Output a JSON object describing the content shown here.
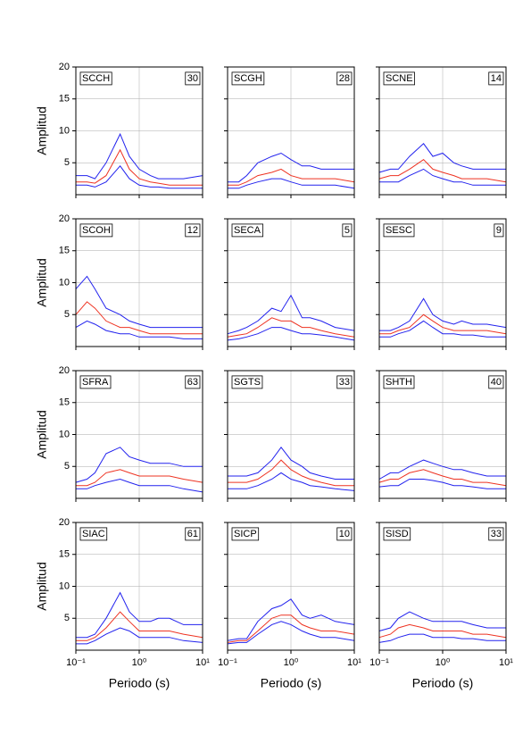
{
  "chart_data": [
    {
      "type": "line",
      "title": "SCCH",
      "annotation": "30",
      "ylabel": "Amplitud",
      "x": [
        0.1,
        0.15,
        0.2,
        0.3,
        0.5,
        0.7,
        1,
        1.5,
        2,
        3,
        5,
        10
      ],
      "xlim": [
        0.1,
        10
      ],
      "xscale": "log",
      "xticks": [
        {
          "value": 0.1,
          "label": "10⁻¹"
        },
        {
          "value": 1,
          "label": "10⁰"
        },
        {
          "value": 10,
          "label": "10¹"
        }
      ],
      "ylim": [
        0,
        20
      ],
      "yticks": [
        5,
        10,
        15,
        20
      ],
      "grid": true,
      "series": [
        {
          "color": "#2222ee",
          "values": [
            3,
            3,
            2.5,
            5,
            9.5,
            6,
            4,
            3,
            2.5,
            2.5,
            2.5,
            3
          ]
        },
        {
          "color": "#2222ee",
          "values": [
            1.5,
            1.5,
            1.2,
            2,
            4.5,
            2.5,
            1.5,
            1.2,
            1.2,
            1,
            1,
            1
          ]
        },
        {
          "color": "#ee3322",
          "values": [
            2,
            2,
            1.8,
            3,
            7,
            4,
            2.5,
            2,
            1.8,
            1.5,
            1.5,
            1.5
          ]
        }
      ]
    },
    {
      "type": "line",
      "title": "SCGH",
      "annotation": "28",
      "x": [
        0.1,
        0.15,
        0.2,
        0.3,
        0.5,
        0.7,
        1,
        1.5,
        2,
        3,
        5,
        10
      ],
      "xlim": [
        0.1,
        10
      ],
      "xscale": "log",
      "xticks": [
        {
          "value": 0.1,
          "label": "10⁻¹"
        },
        {
          "value": 1,
          "label": "10⁰"
        },
        {
          "value": 10,
          "label": "10¹"
        }
      ],
      "ylim": [
        0,
        20
      ],
      "yticks": [
        5,
        10,
        15,
        20
      ],
      "grid": true,
      "series": [
        {
          "color": "#2222ee",
          "values": [
            2,
            2,
            3,
            5,
            6,
            6.5,
            5.5,
            4.5,
            4.5,
            4,
            4,
            4
          ]
        },
        {
          "color": "#2222ee",
          "values": [
            1,
            1,
            1.5,
            2,
            2.5,
            2.5,
            2,
            1.5,
            1.5,
            1.5,
            1.5,
            1
          ]
        },
        {
          "color": "#ee3322",
          "values": [
            1.5,
            1.5,
            2,
            3,
            3.5,
            4,
            3,
            2.5,
            2.5,
            2.5,
            2.5,
            2
          ]
        }
      ]
    },
    {
      "type": "line",
      "title": "SCNE",
      "annotation": "14",
      "x": [
        0.1,
        0.15,
        0.2,
        0.3,
        0.5,
        0.7,
        1,
        1.5,
        2,
        3,
        5,
        10
      ],
      "xlim": [
        0.1,
        10
      ],
      "xscale": "log",
      "xticks": [
        {
          "value": 0.1,
          "label": "10⁻¹"
        },
        {
          "value": 1,
          "label": "10⁰"
        },
        {
          "value": 10,
          "label": "10¹"
        }
      ],
      "ylim": [
        0,
        20
      ],
      "yticks": [
        5,
        10,
        15,
        20
      ],
      "grid": true,
      "series": [
        {
          "color": "#2222ee",
          "values": [
            3.5,
            4,
            4,
            6,
            8,
            6,
            6.5,
            5,
            4.5,
            4,
            4,
            4
          ]
        },
        {
          "color": "#2222ee",
          "values": [
            2,
            2,
            2,
            3,
            4,
            3,
            2.5,
            2,
            2,
            1.5,
            1.5,
            1.5
          ]
        },
        {
          "color": "#ee3322",
          "values": [
            2.5,
            3,
            3,
            4,
            5.5,
            4,
            3.5,
            3,
            2.5,
            2.5,
            2.5,
            2
          ]
        }
      ]
    },
    {
      "type": "line",
      "title": "SCOH",
      "annotation": "12",
      "ylabel": "Amplitud",
      "x": [
        0.1,
        0.15,
        0.2,
        0.3,
        0.5,
        0.7,
        1,
        1.5,
        2,
        3,
        5,
        10
      ],
      "xlim": [
        0.1,
        10
      ],
      "xscale": "log",
      "xticks": [
        {
          "value": 0.1,
          "label": "10⁻¹"
        },
        {
          "value": 1,
          "label": "10⁰"
        },
        {
          "value": 10,
          "label": "10¹"
        }
      ],
      "ylim": [
        0,
        20
      ],
      "yticks": [
        5,
        10,
        15,
        20
      ],
      "grid": true,
      "series": [
        {
          "color": "#2222ee",
          "values": [
            9,
            11,
            9,
            6,
            5,
            4,
            3.5,
            3,
            3,
            3,
            3,
            3
          ]
        },
        {
          "color": "#2222ee",
          "values": [
            3,
            4,
            3.5,
            2.5,
            2,
            2,
            1.5,
            1.5,
            1.5,
            1.5,
            1.2,
            1.2
          ]
        },
        {
          "color": "#ee3322",
          "values": [
            5,
            7,
            6,
            4,
            3,
            3,
            2.5,
            2,
            2,
            2,
            2,
            2
          ]
        }
      ]
    },
    {
      "type": "line",
      "title": "SECA",
      "annotation": "5",
      "x": [
        0.1,
        0.15,
        0.2,
        0.3,
        0.5,
        0.7,
        1,
        1.5,
        2,
        3,
        5,
        10
      ],
      "xlim": [
        0.1,
        10
      ],
      "xscale": "log",
      "xticks": [
        {
          "value": 0.1,
          "label": "10⁻¹"
        },
        {
          "value": 1,
          "label": "10⁰"
        },
        {
          "value": 10,
          "label": "10¹"
        }
      ],
      "ylim": [
        0,
        20
      ],
      "yticks": [
        5,
        10,
        15,
        20
      ],
      "grid": true,
      "series": [
        {
          "color": "#2222ee",
          "values": [
            2,
            2.5,
            3,
            4,
            6,
            5.5,
            8,
            4.5,
            4.5,
            4,
            3,
            2.5
          ]
        },
        {
          "color": "#2222ee",
          "values": [
            1,
            1.2,
            1.5,
            2,
            3,
            3,
            2.5,
            2,
            2,
            1.8,
            1.5,
            1
          ]
        },
        {
          "color": "#ee3322",
          "values": [
            1.5,
            1.8,
            2,
            3,
            4.5,
            4,
            4,
            3,
            3,
            2.5,
            2,
            1.5
          ]
        }
      ]
    },
    {
      "type": "line",
      "title": "SESC",
      "annotation": "9",
      "x": [
        0.1,
        0.15,
        0.2,
        0.3,
        0.5,
        0.7,
        1,
        1.5,
        2,
        3,
        5,
        10
      ],
      "xlim": [
        0.1,
        10
      ],
      "xscale": "log",
      "xticks": [
        {
          "value": 0.1,
          "label": "10⁻¹"
        },
        {
          "value": 1,
          "label": "10⁰"
        },
        {
          "value": 10,
          "label": "10¹"
        }
      ],
      "ylim": [
        0,
        20
      ],
      "yticks": [
        5,
        10,
        15,
        20
      ],
      "grid": true,
      "series": [
        {
          "color": "#2222ee",
          "values": [
            2.5,
            2.5,
            3,
            4,
            7.5,
            5,
            4,
            3.5,
            4,
            3.5,
            3.5,
            3
          ]
        },
        {
          "color": "#2222ee",
          "values": [
            1.5,
            1.5,
            2,
            2.5,
            4,
            3,
            2,
            2,
            1.8,
            1.8,
            1.5,
            1.5
          ]
        },
        {
          "color": "#ee3322",
          "values": [
            2,
            2,
            2.5,
            3,
            5,
            4,
            3,
            2.5,
            2.5,
            2.5,
            2.5,
            2
          ]
        }
      ]
    },
    {
      "type": "line",
      "title": "SFRA",
      "annotation": "63",
      "ylabel": "Amplitud",
      "x": [
        0.1,
        0.15,
        0.2,
        0.3,
        0.5,
        0.7,
        1,
        1.5,
        2,
        3,
        5,
        10
      ],
      "xlim": [
        0.1,
        10
      ],
      "xscale": "log",
      "xticks": [
        {
          "value": 0.1,
          "label": "10⁻¹"
        },
        {
          "value": 1,
          "label": "10⁰"
        },
        {
          "value": 10,
          "label": "10¹"
        }
      ],
      "ylim": [
        0,
        20
      ],
      "yticks": [
        5,
        10,
        15,
        20
      ],
      "grid": true,
      "series": [
        {
          "color": "#2222ee",
          "values": [
            2.5,
            3,
            4,
            7,
            8,
            6.5,
            6,
            5.5,
            5.5,
            5.5,
            5,
            5
          ]
        },
        {
          "color": "#2222ee",
          "values": [
            1.5,
            1.5,
            2,
            2.5,
            3,
            2.5,
            2,
            2,
            2,
            2,
            1.5,
            1
          ]
        },
        {
          "color": "#ee3322",
          "values": [
            2,
            2,
            2.5,
            4,
            4.5,
            4,
            3.5,
            3.5,
            3.5,
            3.5,
            3,
            2.5
          ]
        }
      ]
    },
    {
      "type": "line",
      "title": "SGTS",
      "annotation": "33",
      "x": [
        0.1,
        0.15,
        0.2,
        0.3,
        0.5,
        0.7,
        1,
        1.5,
        2,
        3,
        5,
        10
      ],
      "xlim": [
        0.1,
        10
      ],
      "xscale": "log",
      "xticks": [
        {
          "value": 0.1,
          "label": "10⁻¹"
        },
        {
          "value": 1,
          "label": "10⁰"
        },
        {
          "value": 10,
          "label": "10¹"
        }
      ],
      "ylim": [
        0,
        20
      ],
      "yticks": [
        5,
        10,
        15,
        20
      ],
      "grid": true,
      "series": [
        {
          "color": "#2222ee",
          "values": [
            3.5,
            3.5,
            3.5,
            4,
            6,
            8,
            6,
            5,
            4,
            3.5,
            3,
            3
          ]
        },
        {
          "color": "#2222ee",
          "values": [
            1.5,
            1.5,
            1.5,
            2,
            3,
            4,
            3,
            2.5,
            2,
            1.8,
            1.5,
            1.2
          ]
        },
        {
          "color": "#ee3322",
          "values": [
            2.5,
            2.5,
            2.5,
            3,
            4.5,
            6,
            4.5,
            3.5,
            3,
            2.5,
            2,
            2
          ]
        }
      ]
    },
    {
      "type": "line",
      "title": "SHTH",
      "annotation": "40",
      "x": [
        0.1,
        0.15,
        0.2,
        0.3,
        0.5,
        0.7,
        1,
        1.5,
        2,
        3,
        5,
        10
      ],
      "xlim": [
        0.1,
        10
      ],
      "xscale": "log",
      "xticks": [
        {
          "value": 0.1,
          "label": "10⁻¹"
        },
        {
          "value": 1,
          "label": "10⁰"
        },
        {
          "value": 10,
          "label": "10¹"
        }
      ],
      "ylim": [
        0,
        20
      ],
      "yticks": [
        5,
        10,
        15,
        20
      ],
      "grid": true,
      "series": [
        {
          "color": "#2222ee",
          "values": [
            3,
            4,
            4,
            5,
            6,
            5.5,
            5,
            4.5,
            4.5,
            4,
            3.5,
            3.5
          ]
        },
        {
          "color": "#2222ee",
          "values": [
            1.8,
            2,
            2,
            3,
            3,
            2.8,
            2.5,
            2,
            2,
            1.8,
            1.5,
            1.5
          ]
        },
        {
          "color": "#ee3322",
          "values": [
            2.5,
            3,
            3,
            4,
            4.5,
            4,
            3.5,
            3,
            3,
            2.5,
            2.5,
            2
          ]
        }
      ]
    },
    {
      "type": "line",
      "title": "SIAC",
      "annotation": "61",
      "ylabel": "Amplitud",
      "xlabel": "Periodo (s)",
      "x": [
        0.1,
        0.15,
        0.2,
        0.3,
        0.5,
        0.7,
        1,
        1.5,
        2,
        3,
        5,
        10
      ],
      "xlim": [
        0.1,
        10
      ],
      "xscale": "log",
      "xticks": [
        {
          "value": 0.1,
          "label": "10⁻¹"
        },
        {
          "value": 1,
          "label": "10⁰"
        },
        {
          "value": 10,
          "label": "10¹"
        }
      ],
      "ylim": [
        0,
        20
      ],
      "yticks": [
        5,
        10,
        15,
        20
      ],
      "grid": true,
      "series": [
        {
          "color": "#2222ee",
          "values": [
            2,
            2,
            2.5,
            5,
            9,
            6,
            4.5,
            4.5,
            5,
            5,
            4,
            4
          ]
        },
        {
          "color": "#2222ee",
          "values": [
            1,
            1,
            1.5,
            2.5,
            3.5,
            3,
            2,
            2,
            2,
            2,
            1.5,
            1.2
          ]
        },
        {
          "color": "#ee3322",
          "values": [
            1.5,
            1.5,
            2,
            3.5,
            6,
            4.5,
            3,
            3,
            3,
            3,
            2.5,
            2
          ]
        }
      ]
    },
    {
      "type": "line",
      "title": "SICP",
      "annotation": "10",
      "xlabel": "Periodo (s)",
      "x": [
        0.1,
        0.15,
        0.2,
        0.3,
        0.5,
        0.7,
        1,
        1.5,
        2,
        3,
        5,
        10
      ],
      "xlim": [
        0.1,
        10
      ],
      "xscale": "log",
      "xticks": [
        {
          "value": 0.1,
          "label": "10⁻¹"
        },
        {
          "value": 1,
          "label": "10⁰"
        },
        {
          "value": 10,
          "label": "10¹"
        }
      ],
      "ylim": [
        0,
        20
      ],
      "yticks": [
        5,
        10,
        15,
        20
      ],
      "grid": true,
      "series": [
        {
          "color": "#2222ee",
          "values": [
            1.5,
            1.8,
            1.8,
            4.5,
            6.5,
            7,
            8,
            5.5,
            5,
            5.5,
            4.5,
            4
          ]
        },
        {
          "color": "#2222ee",
          "values": [
            1,
            1.2,
            1.2,
            2.5,
            4,
            4.5,
            4,
            3,
            2.5,
            2,
            2,
            1.5
          ]
        },
        {
          "color": "#ee3322",
          "values": [
            1.2,
            1.5,
            1.5,
            3,
            5,
            5.5,
            5.5,
            4,
            3.5,
            3,
            3,
            2.5
          ]
        }
      ]
    },
    {
      "type": "line",
      "title": "SISD",
      "annotation": "33",
      "xlabel": "Periodo (s)",
      "x": [
        0.1,
        0.15,
        0.2,
        0.3,
        0.5,
        0.7,
        1,
        1.5,
        2,
        3,
        5,
        10
      ],
      "xlim": [
        0.1,
        10
      ],
      "xscale": "log",
      "xticks": [
        {
          "value": 0.1,
          "label": "10⁻¹"
        },
        {
          "value": 1,
          "label": "10⁰"
        },
        {
          "value": 10,
          "label": "10¹"
        }
      ],
      "ylim": [
        0,
        20
      ],
      "yticks": [
        5,
        10,
        15,
        20
      ],
      "grid": true,
      "series": [
        {
          "color": "#2222ee",
          "values": [
            3,
            3.5,
            5,
            6,
            5,
            4.5,
            4.5,
            4.5,
            4.5,
            4,
            3.5,
            3.5
          ]
        },
        {
          "color": "#2222ee",
          "values": [
            1.2,
            1.5,
            2,
            2.5,
            2.5,
            2,
            2,
            2,
            1.8,
            1.8,
            1.5,
            1.5
          ]
        },
        {
          "color": "#ee3322",
          "values": [
            2,
            2.5,
            3.5,
            4,
            3.5,
            3,
            3,
            3,
            3,
            2.5,
            2.5,
            2
          ]
        }
      ]
    }
  ]
}
